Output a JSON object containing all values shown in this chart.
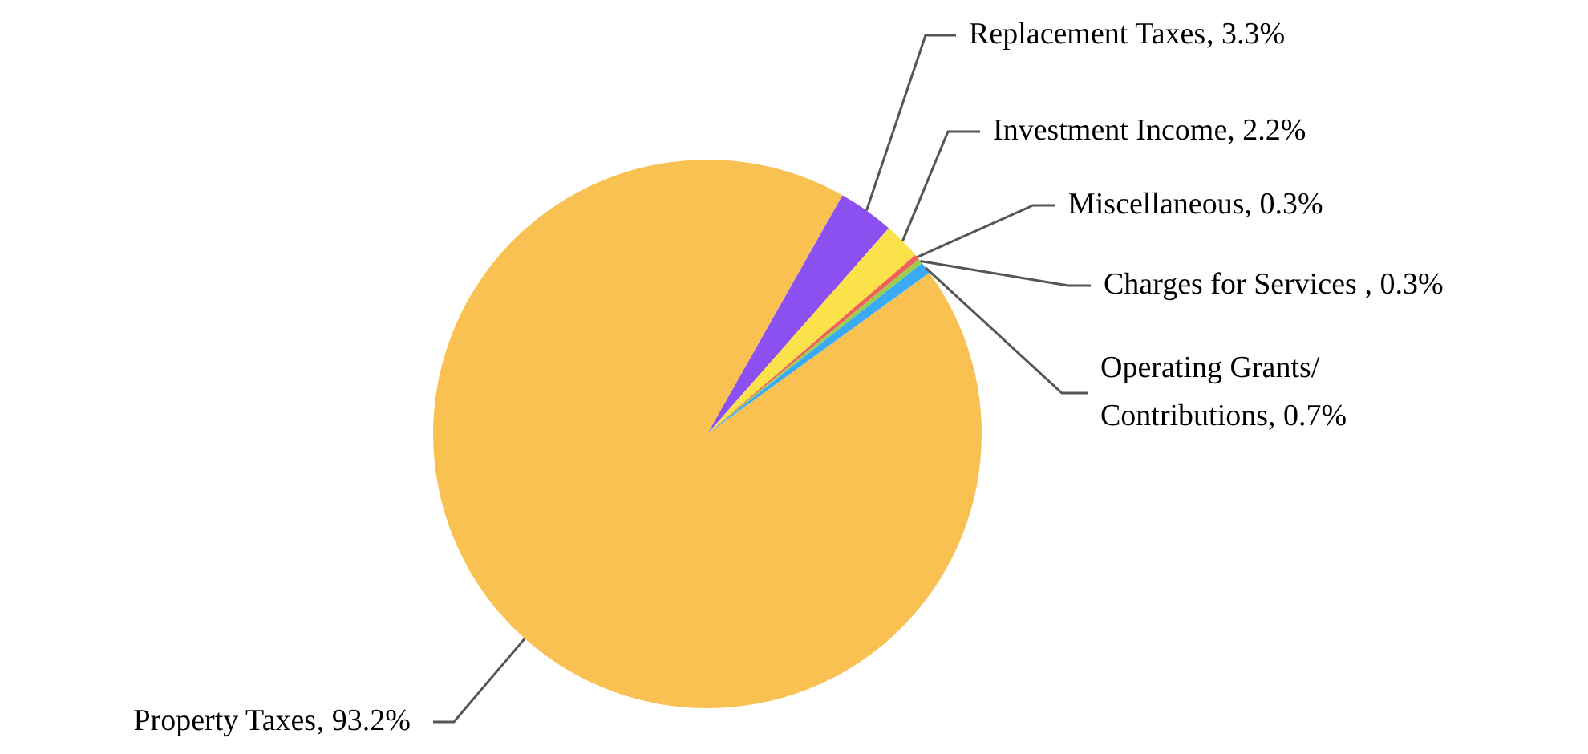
{
  "chart_data": {
    "type": "pie",
    "categories": [
      "Property Taxes",
      "Replacement Taxes",
      "Investment Income",
      "Miscellaneous",
      "Charges for Services ",
      "Operating Grants/Contributions"
    ],
    "values": [
      93.2,
      3.3,
      2.2,
      0.3,
      0.3,
      0.7
    ],
    "colors": [
      "#f9c152",
      "#8b50ef",
      "#fbe14a",
      "#f0605a",
      "#9acd4a",
      "#3aaaf5"
    ],
    "value_labels": [
      ", 93.2%",
      ", 3.3%",
      ", 2.2%",
      ", 0.3%",
      ", 0.3%",
      ", 0.7%"
    ],
    "legend": false
  }
}
